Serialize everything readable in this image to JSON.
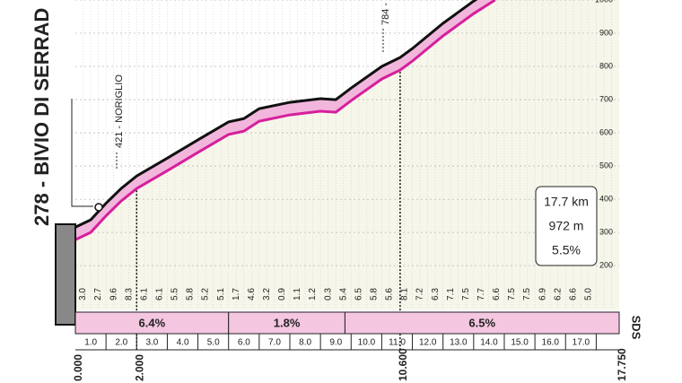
{
  "chart_data": {
    "type": "area",
    "title": "278 - BIVIO DI SERRAD",
    "x": [
      0,
      0.5,
      1,
      1.5,
      2,
      3,
      4,
      5,
      5.5,
      6,
      7,
      8,
      8.5,
      9,
      10,
      10.6,
      11,
      12,
      13,
      13.7
    ],
    "values": [
      278,
      300,
      350,
      395,
      432,
      486,
      541,
      595,
      605,
      635,
      654,
      665,
      662,
      697,
      762,
      789,
      816,
      892,
      959,
      1000
    ],
    "color": "#d61f9c",
    "xlim": [
      0,
      17.75
    ],
    "xticks": [
      {
        "value": 1,
        "label": "1.0"
      },
      {
        "value": 2,
        "label": "2.0"
      },
      {
        "value": 3,
        "label": "3.0"
      },
      {
        "value": 4,
        "label": "4.0"
      },
      {
        "value": 5,
        "label": "5.0"
      },
      {
        "value": 6,
        "label": "6.0"
      },
      {
        "value": 7,
        "label": "7.0"
      },
      {
        "value": 8,
        "label": "8.0"
      },
      {
        "value": 9,
        "label": "9.0"
      },
      {
        "value": 10,
        "label": "10.0"
      },
      {
        "value": 11,
        "label": "11.0"
      },
      {
        "value": 12,
        "label": "12.0"
      },
      {
        "value": 13,
        "label": "13.0"
      },
      {
        "value": 14,
        "label": "14.0"
      },
      {
        "value": 15,
        "label": "15.0"
      },
      {
        "value": 16,
        "label": "16.0"
      },
      {
        "value": 17,
        "label": "17.0"
      }
    ],
    "ylim": [
      68,
      1000
    ],
    "yticks": [
      200,
      300,
      400,
      500,
      600,
      700,
      800,
      900,
      1000
    ],
    "grid": true,
    "gradients": [
      "3.0",
      "2.7",
      "9.6",
      "8.3",
      "6.1",
      "6.1",
      "5.5",
      "5.8",
      "5.2",
      "5.1",
      "1.7",
      "4.6",
      "3.2",
      "0.9",
      "1.1",
      "1.2",
      "0.3",
      "5.4",
      "6.5",
      "5.8",
      "5.6",
      "8.1",
      "7.2",
      "6.3",
      "7.1",
      "7.5",
      "7.7",
      "6.6",
      "7.5",
      "7.5",
      "6.9",
      "6.2",
      "6.6",
      "5.0"
    ],
    "segments": [
      {
        "from": 0,
        "to": 5,
        "label": "6.4%"
      },
      {
        "from": 5,
        "to": 8.8,
        "label": "1.8%"
      },
      {
        "from": 8.8,
        "to": 17.75,
        "label": "6.5%"
      }
    ],
    "distance_marks": [
      {
        "value": 0,
        "label": "0.000"
      },
      {
        "value": 2,
        "label": "2.000"
      },
      {
        "value": 10.6,
        "label": "10.600"
      },
      {
        "value": 17.75,
        "label": "17.750"
      }
    ],
    "annotations": [
      "421 - NORIGLIO",
      "784 -"
    ],
    "summary": [
      "17.7 km",
      "972 m",
      "5.5%"
    ],
    "brand": "SDS"
  }
}
